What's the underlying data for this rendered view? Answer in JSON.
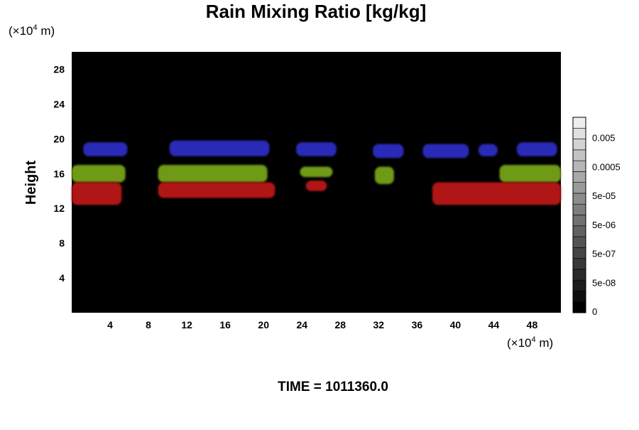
{
  "chart_data": {
    "type": "heatmap",
    "title": "Rain Mixing Ratio [kg/kg]",
    "ylabel": "Height",
    "xlabel": "",
    "x_unit": {
      "prefix": "(×10",
      "exp": "4",
      "suffix": " m)"
    },
    "y_unit": {
      "prefix": "(×10",
      "exp": "4",
      "suffix": " m)"
    },
    "xlim": [
      0,
      51
    ],
    "ylim": [
      0,
      30
    ],
    "x_ticks": [
      4,
      8,
      12,
      16,
      20,
      24,
      28,
      32,
      36,
      40,
      44,
      48
    ],
    "y_ticks": [
      4,
      8,
      12,
      16,
      20,
      24,
      28
    ],
    "background_color": "#000000",
    "grid": false,
    "colorbar": {
      "labels": [
        "0",
        "5e-08",
        "5e-07",
        "5e-06",
        "5e-05",
        "0.0005",
        "0.005"
      ],
      "colors": [
        "#000000",
        "#0e0e0e",
        "#1c1c1c",
        "#2a2a2a",
        "#383838",
        "#464646",
        "#545454",
        "#626262",
        "#707070",
        "#7e7e7e",
        "#8c8c8c",
        "#9a9a9a",
        "#a8a8a8",
        "#b6b6b6",
        "#c4c4c4",
        "#d2d2d2",
        "#e0e0e0",
        "#eeeeee"
      ]
    },
    "layers": [
      {
        "color": "#2a2ab8",
        "blobs": [
          {
            "x0": 1.2,
            "x1": 5.8,
            "y0": 18.0,
            "y1": 19.6
          },
          {
            "x0": 10.2,
            "x1": 20.6,
            "y0": 18.0,
            "y1": 19.8
          },
          {
            "x0": 23.4,
            "x1": 27.6,
            "y0": 18.0,
            "y1": 19.6
          },
          {
            "x0": 31.4,
            "x1": 34.6,
            "y0": 17.8,
            "y1": 19.4
          },
          {
            "x0": 36.6,
            "x1": 41.4,
            "y0": 17.8,
            "y1": 19.4
          },
          {
            "x0": 42.4,
            "x1": 44.4,
            "y0": 18.0,
            "y1": 19.4
          },
          {
            "x0": 46.4,
            "x1": 50.6,
            "y0": 18.0,
            "y1": 19.6
          }
        ]
      },
      {
        "color": "#6e9a12",
        "blobs": [
          {
            "x0": 0.0,
            "x1": 5.6,
            "y0": 15.0,
            "y1": 17.0
          },
          {
            "x0": 9.0,
            "x1": 20.4,
            "y0": 15.0,
            "y1": 17.0
          },
          {
            "x0": 23.8,
            "x1": 27.2,
            "y0": 15.6,
            "y1": 16.8
          },
          {
            "x0": 31.6,
            "x1": 33.6,
            "y0": 14.8,
            "y1": 16.8
          },
          {
            "x0": 44.6,
            "x1": 51.0,
            "y0": 15.0,
            "y1": 17.0
          }
        ]
      },
      {
        "color": "#b01212",
        "blobs": [
          {
            "x0": 0.0,
            "x1": 5.2,
            "y0": 12.4,
            "y1": 15.0
          },
          {
            "x0": 9.0,
            "x1": 21.2,
            "y0": 13.2,
            "y1": 15.0
          },
          {
            "x0": 24.4,
            "x1": 26.6,
            "y0": 14.0,
            "y1": 15.2
          },
          {
            "x0": 37.6,
            "x1": 51.0,
            "y0": 12.4,
            "y1": 15.0
          }
        ]
      }
    ]
  },
  "footer": {
    "time_label": "TIME = 1011360.0"
  }
}
